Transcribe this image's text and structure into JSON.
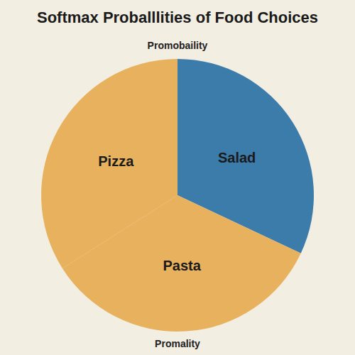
{
  "chart_data": {
    "type": "pie",
    "title": "Softmax Proballlities of Food Choices",
    "subtitle": "Promobaility",
    "caption": "Promality",
    "categories": [
      "Salad",
      "Pasta",
      "Pizza"
    ],
    "values": [
      32,
      34,
      34
    ],
    "colors": [
      "#3b7cab",
      "#e8b15e",
      "#e8b15e"
    ]
  }
}
